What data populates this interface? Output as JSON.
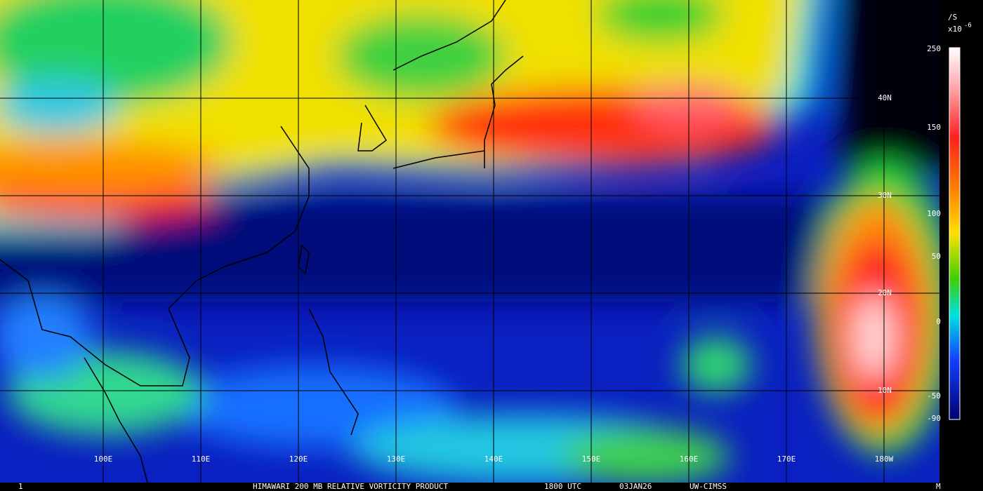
{
  "colorbar": {
    "units": "/S",
    "scale": "x10",
    "exponent": "-6",
    "ticks": [
      250,
      150,
      100,
      50,
      0,
      -50,
      -90
    ]
  },
  "map": {
    "lon_labels": [
      "100E",
      "110E",
      "120E",
      "130E",
      "140E",
      "150E",
      "160E",
      "170E",
      "180W"
    ],
    "lat_labels": [
      "40N",
      "30N",
      "20N",
      "10N"
    ]
  },
  "footer": {
    "frame": "1",
    "caption": "HIMAWARI 200 MB RELATIVE VORTICITY PRODUCT",
    "time": "1800 UTC",
    "date": "03JAN26",
    "source": "UW-CIMSS",
    "end": "M"
  }
}
